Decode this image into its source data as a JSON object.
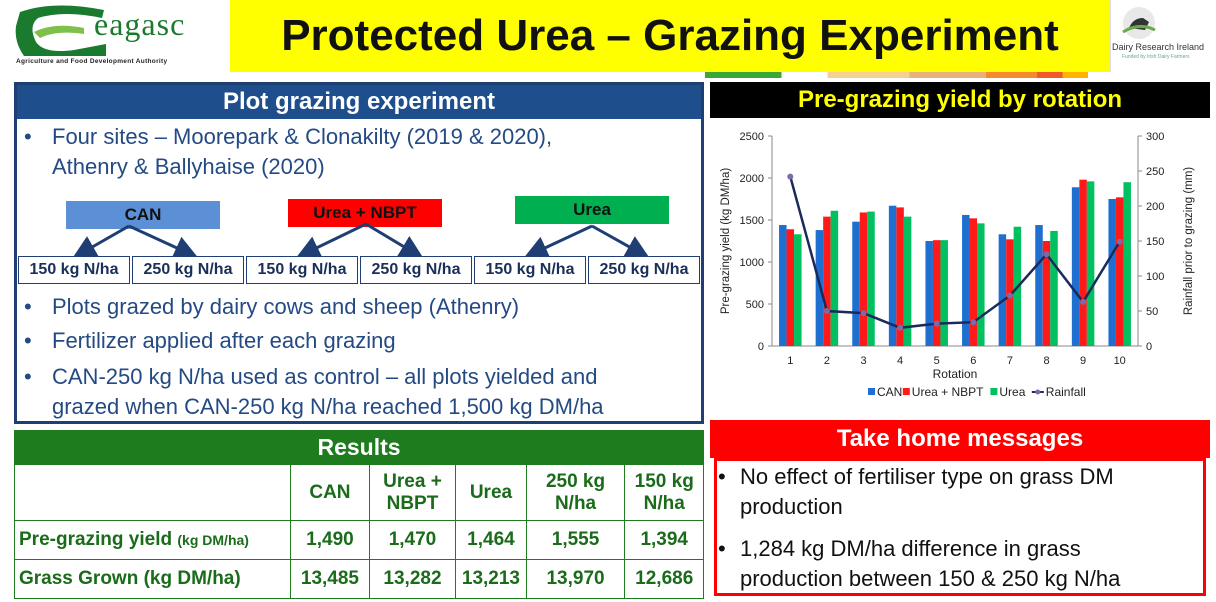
{
  "header": {
    "logo_text": "eagasc",
    "logo_subtitle": "Agriculture and Food Development Authority",
    "title": "Protected Urea – Grazing Experiment",
    "dri_text": "Dairy Research Ireland",
    "dri_sub": "Funded by Irish Dairy Farmers"
  },
  "left": {
    "header": "Plot grazing experiment",
    "bullet_1a": "Four sites – Moorepark & Clonakilty (2019 & 2020),",
    "bullet_1b": "Athenry & Ballyhaise (2020)",
    "treatments": [
      "CAN",
      "Urea + NBPT",
      "Urea"
    ],
    "treatment_colors": [
      "#5b8fd6",
      "#ff0000",
      "#00b050"
    ],
    "rates": [
      "150 kg N/ha",
      "250 kg N/ha",
      "150 kg N/ha",
      "250 kg N/ha",
      "150 kg N/ha",
      "250 kg N/ha"
    ],
    "bullet_2": "Plots grazed by dairy cows and sheep (Athenry)",
    "bullet_3": "Fertilizer applied after each grazing",
    "bullet_4a": "CAN-250 kg N/ha used as control – all plots yielded and",
    "bullet_4b": "grazed when CAN-250 kg N/ha reached 1,500 kg DM/ha"
  },
  "results": {
    "header": "Results",
    "columns": [
      "CAN",
      "Urea +",
      "NBPT",
      "Urea",
      "250 kg",
      "N/ha",
      "150 kg",
      "N/ha"
    ],
    "row1_label": "Pre-grazing yield",
    "row1_unit": "(kg DM/ha)",
    "row1_values": [
      "1,490",
      "1,470",
      "1,464",
      "1,555",
      "1,394"
    ],
    "row2_label": "Grass Grown (kg DM/ha)",
    "row2_values": [
      "13,485",
      "13,282",
      "13,213",
      "13,970",
      "12,686"
    ]
  },
  "chart_header": "Pre-grazing yield by rotation",
  "chart_data": {
    "type": "bar",
    "categories": [
      "1",
      "2",
      "3",
      "4",
      "5",
      "6",
      "7",
      "8",
      "9",
      "10"
    ],
    "xlabel": "Rotation",
    "ylabel": "Pre-grazing yield (kg DM/ha)",
    "y2label": "Rainfall prior to grazing (mm)",
    "ylim": [
      0,
      2500
    ],
    "y2lim": [
      0,
      300
    ],
    "yticks": [
      "0",
      "500",
      "1000",
      "1500",
      "2000",
      "2500"
    ],
    "y2ticks": [
      "0",
      "50",
      "100",
      "150",
      "200",
      "250",
      "300"
    ],
    "series": [
      {
        "name": "CAN",
        "color": "#1f6fd0",
        "values": [
          1440,
          1380,
          1480,
          1670,
          1250,
          1560,
          1330,
          1440,
          1890,
          1750
        ]
      },
      {
        "name": "Urea + NBPT",
        "color": "#ff1a1a",
        "values": [
          1390,
          1540,
          1590,
          1650,
          1260,
          1520,
          1270,
          1250,
          1980,
          1770
        ]
      },
      {
        "name": "Urea",
        "color": "#00c060",
        "values": [
          1330,
          1610,
          1600,
          1540,
          1260,
          1460,
          1420,
          1370,
          1960,
          1950
        ]
      }
    ],
    "line_series": {
      "name": "Rainfall",
      "color": "#1a2a5c",
      "values": [
        242,
        50,
        47,
        26,
        32,
        34,
        72,
        131,
        63,
        149
      ]
    },
    "legend": "bottom"
  },
  "take_home": {
    "header": "Take home messages",
    "msg_1a": "No effect of fertiliser type on grass DM",
    "msg_1b": "production",
    "msg_2a": "1,284 kg DM/ha difference in grass",
    "msg_2b": "production between 150 & 250 kg N/ha"
  }
}
